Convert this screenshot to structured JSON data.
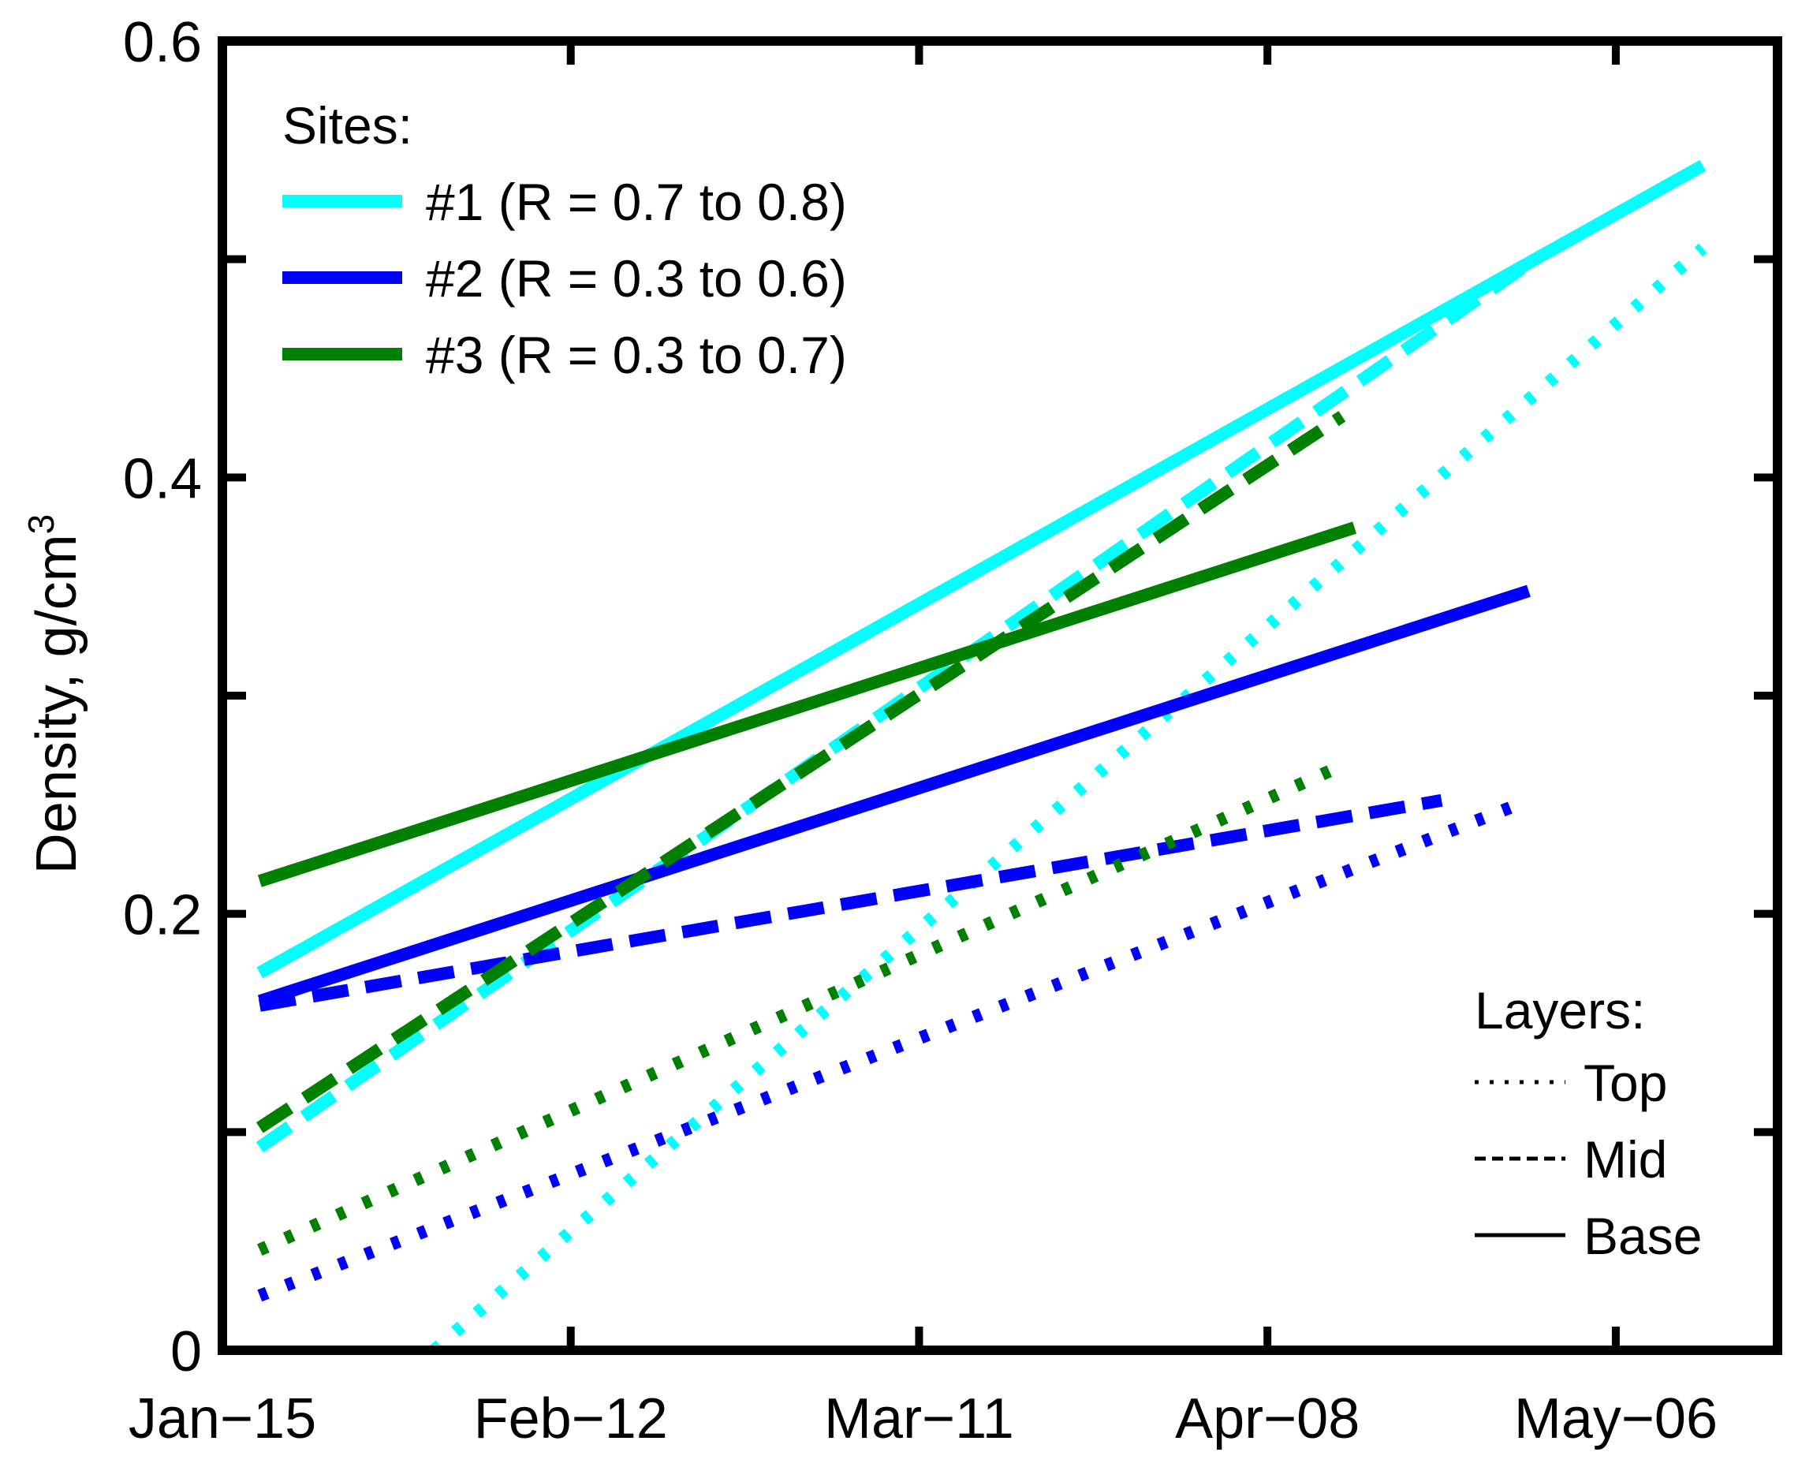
{
  "chart_data": {
    "type": "line",
    "title": "",
    "xlabel": "",
    "ylabel": "Density, g/cm",
    "ylabel_superscript": "3",
    "xlim": [
      0,
      125
    ],
    "ylim": [
      0,
      0.6
    ],
    "x_ticks": [
      {
        "value": 0,
        "label": "Jan−15"
      },
      {
        "value": 28,
        "label": "Feb−12"
      },
      {
        "value": 56,
        "label": "Mar−11"
      },
      {
        "value": 84,
        "label": "Apr−08"
      },
      {
        "value": 112,
        "label": "May−06"
      }
    ],
    "y_ticks": [
      {
        "value": 0,
        "label": "0"
      },
      {
        "value": 0.1,
        "label": ""
      },
      {
        "value": 0.2,
        "label": "0.2"
      },
      {
        "value": 0.3,
        "label": ""
      },
      {
        "value": 0.4,
        "label": "0.4"
      },
      {
        "value": 0.5,
        "label": ""
      },
      {
        "value": 0.6,
        "label": "0.6"
      }
    ],
    "colors": {
      "site1": "#00ffff",
      "site2": "#0000ff",
      "site3": "#008000",
      "axis": "#000000"
    },
    "series": [
      {
        "name": "#1 Base",
        "site": "site1",
        "layer": "Base",
        "x": [
          3,
          119
        ],
        "y": [
          0.173,
          0.543
        ]
      },
      {
        "name": "#1 Mid",
        "site": "site1",
        "layer": "Mid",
        "x": [
          3,
          105
        ],
        "y": [
          0.093,
          0.498
        ]
      },
      {
        "name": "#1 Top",
        "site": "site1",
        "layer": "Top",
        "x": [
          17,
          119
        ],
        "y": [
          0.0,
          0.505
        ]
      },
      {
        "name": "#2 Base",
        "site": "site2",
        "layer": "Base",
        "x": [
          3,
          105
        ],
        "y": [
          0.16,
          0.348
        ]
      },
      {
        "name": "#2 Mid",
        "site": "site2",
        "layer": "Mid",
        "x": [
          3,
          98
        ],
        "y": [
          0.158,
          0.252
        ]
      },
      {
        "name": "#2 Top",
        "site": "site2",
        "layer": "Top",
        "x": [
          3,
          105
        ],
        "y": [
          0.025,
          0.252
        ]
      },
      {
        "name": "#3 Base",
        "site": "site3",
        "layer": "Base",
        "x": [
          3,
          91
        ],
        "y": [
          0.215,
          0.377
        ]
      },
      {
        "name": "#3 Mid",
        "site": "site3",
        "layer": "Mid",
        "x": [
          3,
          90
        ],
        "y": [
          0.102,
          0.428
        ]
      },
      {
        "name": "#3 Top",
        "site": "site3",
        "layer": "Top",
        "x": [
          3,
          90
        ],
        "y": [
          0.046,
          0.268
        ]
      }
    ],
    "legend_sites": {
      "title": "Sites:",
      "placement": "top-left",
      "entries": [
        {
          "site": "site1",
          "label": "#1 (R = 0.7 to 0.8)"
        },
        {
          "site": "site2",
          "label": "#2 (R = 0.3 to 0.6)"
        },
        {
          "site": "site3",
          "label": "#3 (R = 0.3 to 0.7)"
        }
      ]
    },
    "legend_layers": {
      "title": "Layers:",
      "placement": "bottom-right",
      "entries": [
        {
          "layer": "Top",
          "label": "Top"
        },
        {
          "layer": "Mid",
          "label": "Mid"
        },
        {
          "layer": "Base",
          "label": "Base"
        }
      ]
    }
  }
}
